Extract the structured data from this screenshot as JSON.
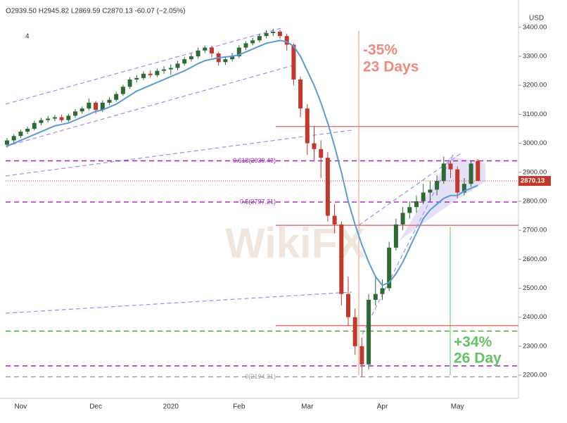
{
  "chart_data": {
    "type": "candlestick",
    "header": "O2939.50 H2945.82 L2869.59 C2870.13 -60.07 (−2.05%)",
    "interval_label": "4",
    "currency": "USD",
    "watermark": "WikiFX",
    "categories": [
      null,
      null,
      "Nov",
      null,
      null,
      null,
      null,
      null,
      null,
      null,
      null,
      null,
      null,
      "Dec",
      null,
      null,
      null,
      null,
      null,
      null,
      null,
      null,
      null,
      null,
      "2020",
      null,
      null,
      null,
      null,
      null,
      null,
      null,
      null,
      null,
      "Feb",
      null,
      null,
      null,
      null,
      null,
      null,
      null,
      null,
      null,
      "Mar",
      null,
      null,
      null,
      null,
      null,
      null,
      null,
      null,
      null,
      null,
      "Apr",
      null,
      null,
      null,
      null,
      null,
      null,
      null,
      null,
      null,
      null,
      "May",
      null,
      null,
      null
    ],
    "open": [
      2995,
      3010,
      3025,
      3040,
      3050,
      3070,
      3080,
      3085,
      3090,
      3080,
      3095,
      3110,
      3120,
      3140,
      3115,
      3140,
      3150,
      3170,
      3195,
      3220,
      3225,
      3240,
      3235,
      3250,
      3255,
      3260,
      3275,
      3290,
      3300,
      3320,
      3330,
      3310,
      3280,
      3290,
      3300,
      3330,
      3345,
      3355,
      3370,
      3380,
      3385,
      3370,
      3340,
      3220,
      3120,
      3000,
      2980,
      2950,
      2750,
      2720,
      2480,
      2400,
      2300,
      2237,
      2460,
      2480,
      2500,
      2640,
      2720,
      2760,
      2780,
      2800,
      2830,
      2840,
      2870,
      2930,
      2910,
      2830,
      2860,
      2939.5
    ],
    "high": [
      3018,
      3032,
      3048,
      3058,
      3078,
      3088,
      3094,
      3098,
      3099,
      3102,
      3118,
      3127,
      3154,
      3146,
      3148,
      3158,
      3178,
      3202,
      3228,
      3236,
      3248,
      3252,
      3258,
      3266,
      3272,
      3284,
      3298,
      3310,
      3330,
      3338,
      3336,
      3316,
      3300,
      3312,
      3338,
      3352,
      3364,
      3378,
      3390,
      3395,
      3392,
      3378,
      3345,
      3230,
      3135,
      3060,
      3010,
      2970,
      2790,
      2730,
      2540,
      2430,
      2330,
      2480,
      2540,
      2530,
      2660,
      2740,
      2780,
      2800,
      2820,
      2860,
      2870,
      2890,
      2954,
      2940,
      2920,
      2880,
      2940,
      2945.82
    ],
    "low": [
      2985,
      3002,
      3018,
      3032,
      3044,
      3062,
      3072,
      3076,
      3072,
      3074,
      3088,
      3102,
      3114,
      3102,
      3108,
      3132,
      3144,
      3164,
      3188,
      3210,
      3218,
      3226,
      3228,
      3240,
      3236,
      3252,
      3268,
      3282,
      3292,
      3312,
      3296,
      3268,
      3270,
      3282,
      3294,
      3322,
      3338,
      3348,
      3362,
      3370,
      3360,
      3320,
      3200,
      3090,
      2960,
      2940,
      2880,
      2730,
      2690,
      2440,
      2370,
      2270,
      2194.31,
      2220,
      2440,
      2460,
      2490,
      2630,
      2700,
      2740,
      2760,
      2790,
      2800,
      2820,
      2860,
      2880,
      2810,
      2820,
      2850,
      2869.59
    ],
    "close": [
      3010,
      3025,
      3040,
      3050,
      3070,
      3080,
      3085,
      3090,
      3080,
      3095,
      3110,
      3120,
      3140,
      3115,
      3140,
      3150,
      3170,
      3195,
      3220,
      3225,
      3240,
      3235,
      3250,
      3255,
      3260,
      3275,
      3290,
      3300,
      3320,
      3330,
      3310,
      3280,
      3290,
      3300,
      3330,
      3345,
      3355,
      3370,
      3380,
      3385,
      3370,
      3340,
      3220,
      3120,
      3000,
      2980,
      2950,
      2750,
      2720,
      2480,
      2400,
      2300,
      2237,
      2460,
      2480,
      2500,
      2640,
      2720,
      2760,
      2780,
      2800,
      2830,
      2840,
      2870,
      2930,
      2910,
      2830,
      2860,
      2930,
      2870.13
    ],
    "up_color": "#2e6b34",
    "down_color": "#c0392b",
    "ma": {
      "color": "#5b9bd5",
      "values": [
        2990,
        3000,
        3010,
        3020,
        3030,
        3040,
        3050,
        3060,
        3065,
        3070,
        3080,
        3090,
        3100,
        3110,
        3115,
        3125,
        3135,
        3150,
        3165,
        3180,
        3190,
        3200,
        3210,
        3220,
        3230,
        3240,
        3250,
        3262,
        3275,
        3285,
        3290,
        3295,
        3298,
        3300,
        3305,
        3315,
        3325,
        3335,
        3345,
        3350,
        3355,
        3350,
        3335,
        3300,
        3250,
        3200,
        3140,
        3070,
        2990,
        2900,
        2800,
        2720,
        2650,
        2590,
        2540,
        2510,
        2520,
        2550,
        2590,
        2640,
        2690,
        2740,
        2770,
        2790,
        2810,
        2820,
        2820,
        2835,
        2845,
        2855
      ]
    },
    "levels": [
      {
        "value": 2939.49,
        "label": "0.618(2939.49)",
        "color": "#9c27b0",
        "dashed": true
      },
      {
        "value": 2797.21,
        "label": "0.5(2797.21)",
        "color": "#9c27b0",
        "dashed": true
      },
      {
        "value": 2194.31,
        "label": "0(2194.31)",
        "color": "#9e9e9e",
        "dashed": true
      },
      {
        "value": 2232,
        "color": "#9c27b0",
        "dashed": true
      },
      {
        "value": 2352,
        "color": "#2eaa2e",
        "dashed": true
      },
      {
        "value": 3058,
        "color": "#e57373",
        "dashed": false
      },
      {
        "value": 2717,
        "color": "#e57373",
        "dashed": false
      },
      {
        "value": 2371,
        "color": "#e57373",
        "dashed": false
      }
    ],
    "annotations": [
      {
        "text": "-35%",
        "color": "#ef8a80"
      },
      {
        "text": "23 Days",
        "color": "#ef8a80"
      },
      {
        "text": "+34%",
        "color": "#66c266"
      },
      {
        "text": "26 Day",
        "color": "#66c266"
      }
    ],
    "ylim": [
      2120,
      3470
    ],
    "yticks": [
      {
        "value": 2200,
        "label": "2200.00"
      },
      {
        "value": 2300,
        "label": "2300.00"
      },
      {
        "value": 2400,
        "label": "2400.00"
      },
      {
        "value": 2500,
        "label": "2500.00"
      },
      {
        "value": 2600,
        "label": "2600.00"
      },
      {
        "value": 2700,
        "label": "2700.00"
      },
      {
        "value": 2800,
        "label": "2800.00"
      },
      {
        "value": 2900,
        "label": "2900.00"
      },
      {
        "value": 3000,
        "label": "3000.00"
      },
      {
        "value": 3100,
        "label": "3100.00"
      },
      {
        "value": 3200,
        "label": "3200.00"
      },
      {
        "value": 3300,
        "label": "3300.00"
      },
      {
        "value": 3400,
        "label": "3400.00"
      }
    ]
  }
}
